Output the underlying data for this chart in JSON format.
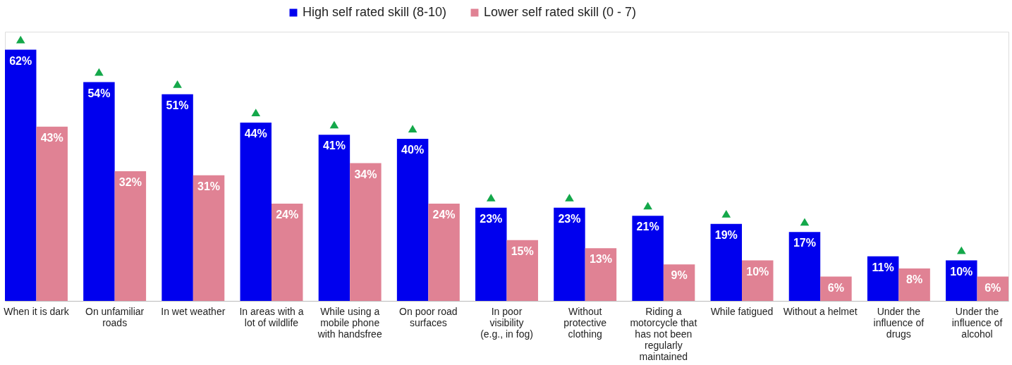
{
  "chart_data": {
    "type": "bar",
    "categories": [
      "When it is dark",
      "On unfamiliar roads",
      "In wet weather",
      "In areas with a lot of wildlife",
      "While using a mobile phone with handsfree",
      "On poor road surfaces",
      "In poor visibility (e.g., in fog)",
      "Without protective clothing",
      "Riding a motorcycle that has not been regularly maintained",
      "While fatigued",
      "Without a helmet",
      "Under the influence of drugs",
      "Under the influence of alcohol"
    ],
    "series": [
      {
        "name": "High self rated skill (8-10)",
        "color": "#0000ee",
        "values": [
          62,
          54,
          51,
          44,
          41,
          40,
          23,
          23,
          21,
          19,
          17,
          11,
          10
        ],
        "value_labels": [
          "62%",
          "54%",
          "51%",
          "44%",
          "41%",
          "40%",
          "23%",
          "23%",
          "21%",
          "19%",
          "17%",
          "11%",
          "10%"
        ]
      },
      {
        "name": "Lower self rated skill (0 - 7)",
        "color": "#e08294",
        "values": [
          43,
          32,
          31,
          24,
          34,
          24,
          15,
          13,
          9,
          10,
          6,
          8,
          6
        ],
        "value_labels": [
          "43%",
          "32%",
          "31%",
          "24%",
          "34%",
          "24%",
          "15%",
          "13%",
          "9%",
          "10%",
          "6%",
          "8%",
          "6%"
        ]
      },
      {
        "type": "scatter",
        "marker": "triangle",
        "color": "#14a84a",
        "values": [
          64.5,
          56.5,
          53.5,
          46.5,
          43.5,
          42.5,
          25.5,
          25.5,
          23.5,
          21.5,
          19.5,
          null,
          12.5
        ]
      }
    ],
    "legend": "top",
    "grid": false,
    "tick_labels": "x"
  }
}
